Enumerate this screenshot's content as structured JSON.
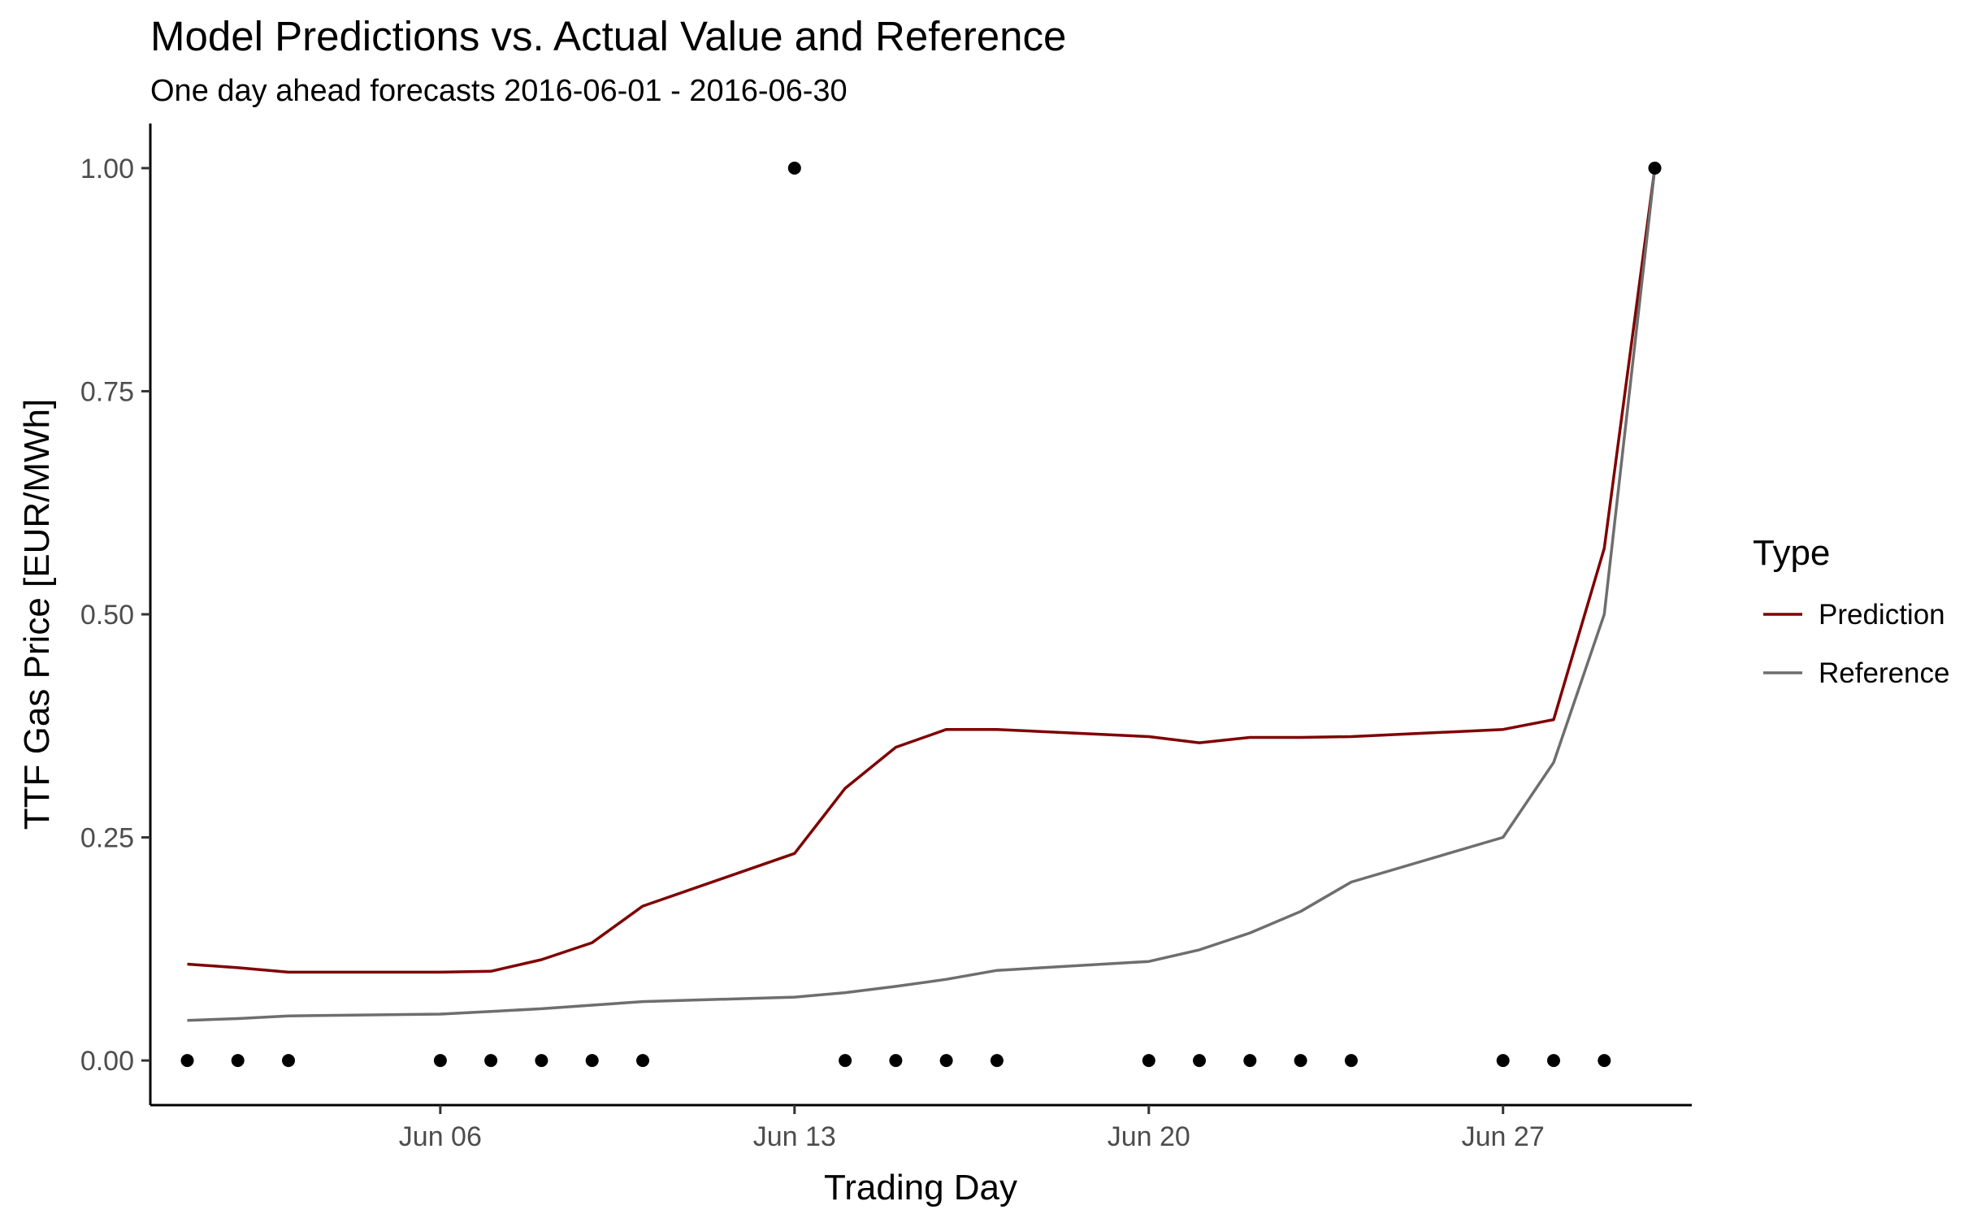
{
  "chart_data": {
    "type": "line",
    "title": "Model Predictions vs. Actual Value and Reference",
    "subtitle": "One day ahead forecasts 2016-06-01 - 2016-06-30",
    "xlabel": "Trading Day",
    "ylabel": "TTF Gas Price [EUR/MWh]",
    "x_range": [
      "2016-06-01",
      "2016-06-30"
    ],
    "ylim": [
      -0.05,
      1.05
    ],
    "x_ticks": [
      {
        "date": "2016-06-06",
        "label": "Jun 06"
      },
      {
        "date": "2016-06-13",
        "label": "Jun 13"
      },
      {
        "date": "2016-06-20",
        "label": "Jun 20"
      },
      {
        "date": "2016-06-27",
        "label": "Jun 27"
      }
    ],
    "y_ticks": [
      {
        "value": 0.0,
        "label": "0.00"
      },
      {
        "value": 0.25,
        "label": "0.25"
      },
      {
        "value": 0.5,
        "label": "0.50"
      },
      {
        "value": 0.75,
        "label": "0.75"
      },
      {
        "value": 1.0,
        "label": "1.00"
      }
    ],
    "grid": false,
    "legend": {
      "title": "Type",
      "placement": "right",
      "entries": [
        "Prediction",
        "Reference"
      ]
    },
    "series": [
      {
        "name": "Prediction",
        "color": "#7f0000",
        "points": [
          {
            "x": "2016-06-01",
            "y": 0.108
          },
          {
            "x": "2016-06-02",
            "y": 0.104
          },
          {
            "x": "2016-06-03",
            "y": 0.099
          },
          {
            "x": "2016-06-06",
            "y": 0.099
          },
          {
            "x": "2016-06-07",
            "y": 0.1
          },
          {
            "x": "2016-06-08",
            "y": 0.113
          },
          {
            "x": "2016-06-09",
            "y": 0.132
          },
          {
            "x": "2016-06-10",
            "y": 0.173
          },
          {
            "x": "2016-06-13",
            "y": 0.232
          },
          {
            "x": "2016-06-14",
            "y": 0.305
          },
          {
            "x": "2016-06-15",
            "y": 0.351
          },
          {
            "x": "2016-06-16",
            "y": 0.371
          },
          {
            "x": "2016-06-17",
            "y": 0.371
          },
          {
            "x": "2016-06-20",
            "y": 0.363
          },
          {
            "x": "2016-06-21",
            "y": 0.356
          },
          {
            "x": "2016-06-22",
            "y": 0.362
          },
          {
            "x": "2016-06-23",
            "y": 0.362
          },
          {
            "x": "2016-06-24",
            "y": 0.363
          },
          {
            "x": "2016-06-27",
            "y": 0.371
          },
          {
            "x": "2016-06-28",
            "y": 0.382
          },
          {
            "x": "2016-06-29",
            "y": 0.574
          },
          {
            "x": "2016-06-30",
            "y": 1.0
          }
        ]
      },
      {
        "name": "Reference",
        "color": "#6e6e6e",
        "points": [
          {
            "x": "2016-06-01",
            "y": 0.045
          },
          {
            "x": "2016-06-02",
            "y": 0.047
          },
          {
            "x": "2016-06-03",
            "y": 0.05
          },
          {
            "x": "2016-06-06",
            "y": 0.052
          },
          {
            "x": "2016-06-07",
            "y": 0.055
          },
          {
            "x": "2016-06-08",
            "y": 0.058
          },
          {
            "x": "2016-06-09",
            "y": 0.062
          },
          {
            "x": "2016-06-10",
            "y": 0.066
          },
          {
            "x": "2016-06-13",
            "y": 0.071
          },
          {
            "x": "2016-06-14",
            "y": 0.076
          },
          {
            "x": "2016-06-15",
            "y": 0.083
          },
          {
            "x": "2016-06-16",
            "y": 0.091
          },
          {
            "x": "2016-06-17",
            "y": 0.101
          },
          {
            "x": "2016-06-20",
            "y": 0.111
          },
          {
            "x": "2016-06-21",
            "y": 0.124
          },
          {
            "x": "2016-06-22",
            "y": 0.143
          },
          {
            "x": "2016-06-23",
            "y": 0.167
          },
          {
            "x": "2016-06-24",
            "y": 0.2
          },
          {
            "x": "2016-06-27",
            "y": 0.25
          },
          {
            "x": "2016-06-28",
            "y": 0.334
          },
          {
            "x": "2016-06-29",
            "y": 0.5
          },
          {
            "x": "2016-06-30",
            "y": 1.0
          }
        ]
      }
    ],
    "actual_points": {
      "color": "#000000",
      "points": [
        {
          "x": "2016-06-01",
          "y": 0
        },
        {
          "x": "2016-06-02",
          "y": 0
        },
        {
          "x": "2016-06-03",
          "y": 0
        },
        {
          "x": "2016-06-06",
          "y": 0
        },
        {
          "x": "2016-06-07",
          "y": 0
        },
        {
          "x": "2016-06-08",
          "y": 0
        },
        {
          "x": "2016-06-09",
          "y": 0
        },
        {
          "x": "2016-06-10",
          "y": 0
        },
        {
          "x": "2016-06-13",
          "y": 1
        },
        {
          "x": "2016-06-14",
          "y": 0
        },
        {
          "x": "2016-06-15",
          "y": 0
        },
        {
          "x": "2016-06-16",
          "y": 0
        },
        {
          "x": "2016-06-17",
          "y": 0
        },
        {
          "x": "2016-06-20",
          "y": 0
        },
        {
          "x": "2016-06-21",
          "y": 0
        },
        {
          "x": "2016-06-22",
          "y": 0
        },
        {
          "x": "2016-06-23",
          "y": 0
        },
        {
          "x": "2016-06-24",
          "y": 0
        },
        {
          "x": "2016-06-27",
          "y": 0
        },
        {
          "x": "2016-06-28",
          "y": 0
        },
        {
          "x": "2016-06-29",
          "y": 0
        },
        {
          "x": "2016-06-30",
          "y": 1
        }
      ]
    }
  }
}
